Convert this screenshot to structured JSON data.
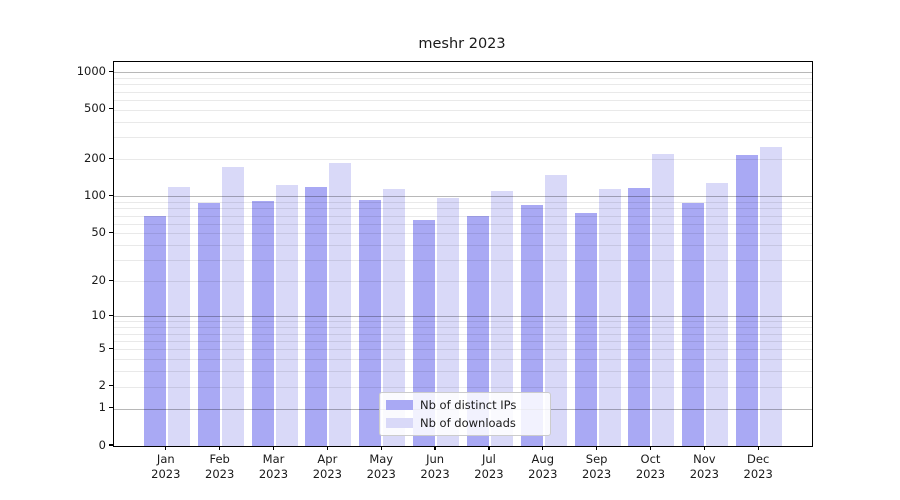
{
  "title": "meshr 2023",
  "chart_data": {
    "type": "bar",
    "title": "meshr 2023",
    "categories": [
      "Jan 2023",
      "Feb 2023",
      "Mar 2023",
      "Apr 2023",
      "May 2023",
      "Jun 2023",
      "Jul 2023",
      "Aug 2023",
      "Sep 2023",
      "Oct 2023",
      "Nov 2023",
      "Dec 2023"
    ],
    "series": [
      {
        "name": "Nb of distinct IPs",
        "color": "#a9a9f4",
        "values": [
          70,
          88,
          92,
          120,
          94,
          64,
          70,
          86,
          74,
          118,
          89,
          218
        ]
      },
      {
        "name": "Nb of downloads",
        "color": "#d9d9f8",
        "values": [
          120,
          172,
          125,
          186,
          114,
          98,
          110,
          148,
          114,
          220,
          128,
          253
        ]
      }
    ],
    "xlabel": "",
    "ylabel": "",
    "yscale": "log1p",
    "y_ticks": [
      0,
      1,
      2,
      5,
      10,
      20,
      50,
      100,
      200,
      500,
      1000
    ],
    "ylim": [
      0,
      1213
    ],
    "grid": "major and minor horizontal gridlines, drawn above bars",
    "legend_position": "lower center"
  },
  "legend": {
    "items": [
      {
        "label": "Nb of distinct IPs",
        "color": "#a9a9f4"
      },
      {
        "label": "Nb of downloads",
        "color": "#d9d9f8"
      }
    ]
  }
}
